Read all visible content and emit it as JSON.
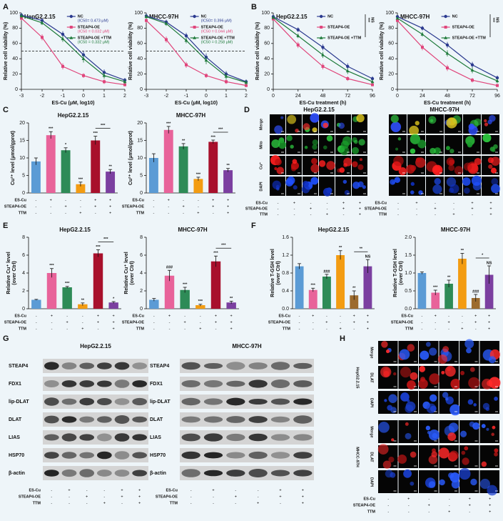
{
  "chart_data": [
    {
      "type": "line",
      "panel": "A",
      "title": "HepG2.2.15",
      "x_label": "ES-Cu (μM, log10)",
      "y_label": [
        "Relative cell viability (%)"
      ],
      "x": [
        -3,
        -2,
        -1,
        0,
        1,
        2
      ],
      "xlim": [
        -3,
        2
      ],
      "xticks": [
        -3,
        -2,
        -1,
        0,
        1,
        2
      ],
      "ylim": [
        0,
        100
      ],
      "yticks": [
        0,
        20,
        40,
        60,
        80,
        100
      ],
      "reference_line": 50,
      "series": [
        {
          "name": "NC",
          "note": "(IC50= 0.473 μM)",
          "color": "#2b3a8f",
          "values": [
            97,
            90,
            72,
            45,
            22,
            12
          ],
          "errors": [
            3,
            3,
            4,
            5,
            4,
            3
          ]
        },
        {
          "name": "STEAP4-OE",
          "note": "(IC50 = 0.032 μM)",
          "color": "#e0457b",
          "values": [
            93,
            68,
            30,
            18,
            10,
            6
          ],
          "errors": [
            3,
            4,
            4,
            3,
            3,
            2
          ]
        },
        {
          "name": "STEAP4-OE +TTM",
          "note": "(IC50 = 0.332 μM)",
          "color": "#1e7a3a",
          "values": [
            96,
            87,
            66,
            40,
            18,
            10
          ],
          "errors": [
            3,
            3,
            4,
            5,
            4,
            3
          ]
        }
      ]
    },
    {
      "type": "line",
      "title": "MHCC-97H",
      "x_label": "ES-Cu (μM, log10)",
      "y_label": [
        "Relative cell viability (%)"
      ],
      "x": [
        -3,
        -2,
        -1,
        0,
        1,
        2
      ],
      "xlim": [
        -3,
        2
      ],
      "xticks": [
        -3,
        -2,
        -1,
        0,
        1,
        2
      ],
      "ylim": [
        0,
        100
      ],
      "yticks": [
        0,
        20,
        40,
        60,
        80,
        100
      ],
      "reference_line": 50,
      "series": [
        {
          "name": "NC",
          "note": "(IC50= 0.396 μM)",
          "color": "#2b3a8f",
          "values": [
            96,
            88,
            70,
            42,
            20,
            10
          ],
          "errors": [
            3,
            3,
            4,
            5,
            4,
            3
          ]
        },
        {
          "name": "STEAP4-OE",
          "note": "(IC50 = 0.044 μM)",
          "color": "#e0457b",
          "values": [
            90,
            65,
            32,
            18,
            10,
            5
          ],
          "errors": [
            3,
            4,
            4,
            3,
            3,
            2
          ]
        },
        {
          "name": "STEAP4-OE +TTM",
          "note": "(IC50 = 0.258 μM)",
          "color": "#1e7a3a",
          "values": [
            95,
            86,
            64,
            38,
            17,
            9
          ],
          "errors": [
            3,
            3,
            4,
            5,
            4,
            3
          ]
        }
      ]
    },
    {
      "type": "line",
      "panel": "B",
      "title": "HepG2.2.15",
      "x_label": "ES-Cu treatment (h)",
      "y_label": [
        "Relative cell viability (%)"
      ],
      "x": [
        0,
        24,
        48,
        72,
        96
      ],
      "xlim": [
        0,
        96
      ],
      "xticks": [
        0,
        24,
        48,
        72,
        96
      ],
      "ylim": [
        0,
        100
      ],
      "yticks": [
        0,
        20,
        40,
        60,
        80,
        100
      ],
      "significance": [
        "***",
        "NS"
      ],
      "series": [
        {
          "name": "NC",
          "color": "#2b3a8f",
          "values": [
            95,
            78,
            55,
            30,
            14
          ],
          "errors": [
            2,
            3,
            4,
            4,
            3
          ]
        },
        {
          "name": "STEAP4-OE",
          "color": "#e0457b",
          "values": [
            92,
            58,
            30,
            14,
            6
          ],
          "errors": [
            2,
            4,
            4,
            3,
            2
          ]
        },
        {
          "name": "STEAP4-OE +TTM",
          "color": "#1e7a3a",
          "values": [
            94,
            70,
            45,
            24,
            10
          ],
          "errors": [
            2,
            3,
            4,
            4,
            3
          ]
        }
      ]
    },
    {
      "type": "line",
      "title": "MHCC-97H",
      "x_label": "ES-Cu treatment (h)",
      "y_label": [
        "Relative cell viability (%)"
      ],
      "x": [
        0,
        24,
        48,
        72,
        96
      ],
      "xlim": [
        0,
        96
      ],
      "xticks": [
        0,
        24,
        48,
        72,
        96
      ],
      "ylim": [
        0,
        100
      ],
      "yticks": [
        0,
        20,
        40,
        60,
        80,
        100
      ],
      "significance": [
        "***",
        "NS"
      ],
      "series": [
        {
          "name": "NC",
          "color": "#2b3a8f",
          "values": [
            95,
            80,
            58,
            32,
            15
          ],
          "errors": [
            2,
            3,
            4,
            4,
            3
          ]
        },
        {
          "name": "STEAP4-OE",
          "color": "#e0457b",
          "values": [
            90,
            55,
            28,
            12,
            5
          ],
          "errors": [
            2,
            4,
            4,
            3,
            2
          ]
        },
        {
          "name": "STEAP4-OE +TTM",
          "color": "#1e7a3a",
          "values": [
            93,
            72,
            47,
            25,
            11
          ],
          "errors": [
            2,
            3,
            4,
            4,
            3
          ]
        }
      ]
    },
    {
      "type": "bar",
      "panel": "C",
      "title": "HepG2.2.15",
      "y_label": [
        "Cu²⁺ level (μmol/gprot)"
      ],
      "values": [
        9,
        16.5,
        12.2,
        2.5,
        15,
        6.1
      ],
      "errors": [
        1,
        1,
        0.7,
        0.6,
        1.2,
        0.6
      ],
      "colors": [
        "#5b9bd5",
        "#e8639a",
        "#2e8b57",
        "#f39c12",
        "#a8102c",
        "#7b3fa0"
      ],
      "annotations": [
        null,
        "***",
        "*",
        "***",
        "***",
        "**"
      ],
      "bracket_label": "***",
      "ylim": [
        0,
        20
      ],
      "yticks": [
        0,
        5,
        10,
        15,
        20
      ],
      "conditions": [
        {
          "name": "ES-Cu",
          "marks": [
            "-",
            "+",
            "-",
            "-",
            "+",
            "+"
          ]
        },
        {
          "name": "STEAP4-OE",
          "marks": [
            "-",
            "-",
            "+",
            "-",
            "+",
            "+"
          ]
        },
        {
          "name": "TTM",
          "marks": [
            "-",
            "-",
            "-",
            "+",
            "-",
            "+"
          ]
        }
      ]
    },
    {
      "type": "bar",
      "title": "MHCC-97H",
      "y_label": [
        "Cu²⁺ level (μmol/gprot)"
      ],
      "values": [
        10,
        18,
        13.3,
        4,
        14.6,
        6.5
      ],
      "errors": [
        1.2,
        1,
        0.8,
        0.5,
        0.5,
        0.5
      ],
      "colors": [
        "#5b9bd5",
        "#e8639a",
        "#2e8b57",
        "#f39c12",
        "#a8102c",
        "#7b3fa0"
      ],
      "annotations": [
        null,
        "***",
        "**",
        "***",
        "***",
        "**"
      ],
      "bracket_label": "***",
      "ylim": [
        0,
        20
      ],
      "yticks": [
        0,
        5,
        10,
        15,
        20
      ],
      "conditions": [
        {
          "name": "ES-Cu",
          "marks": [
            "-",
            "+",
            "-",
            "-",
            "+",
            "+"
          ]
        },
        {
          "name": "STEAP4-OE",
          "marks": [
            "-",
            "-",
            "+",
            "-",
            "+",
            "+"
          ]
        },
        {
          "name": "TTM",
          "marks": [
            "-",
            "-",
            "-",
            "+",
            "-",
            "+"
          ]
        }
      ]
    },
    {
      "type": "bar",
      "panel": "E",
      "title": "HepG2.2.15",
      "y_label": [
        "Relative Cu⁺ level",
        "(over Ctrl)"
      ],
      "values": [
        1,
        4,
        2.4,
        0.5,
        6.2,
        0.7
      ],
      "errors": [
        0.05,
        0.5,
        0.1,
        0.15,
        0.4,
        0.1
      ],
      "colors": [
        "#5b9bd5",
        "#e8639a",
        "#2e8b57",
        "#f39c12",
        "#a8102c",
        "#7b3fa0"
      ],
      "annotations": [
        null,
        "***",
        "***",
        "**",
        "***",
        "*"
      ],
      "bracket_label": "***",
      "ylim": [
        0,
        8
      ],
      "yticks": [
        0,
        2,
        4,
        6,
        8
      ],
      "conditions": [
        {
          "name": "ES-Cu",
          "marks": [
            "-",
            "+",
            "-",
            "-",
            "+",
            "+"
          ]
        },
        {
          "name": "STEAP4-OE",
          "marks": [
            "-",
            "-",
            "+",
            "-",
            "+",
            "+"
          ]
        },
        {
          "name": "TTM",
          "marks": [
            "-",
            "-",
            "-",
            "+",
            "-",
            "+"
          ]
        }
      ]
    },
    {
      "type": "bar",
      "title": "MHCC-97H",
      "y_label": [
        "Relative Cu⁺ level",
        "(over Ctrl)"
      ],
      "values": [
        1,
        3.7,
        2.1,
        0.4,
        5.3,
        0.7
      ],
      "errors": [
        0.15,
        0.6,
        0.3,
        0.1,
        0.6,
        0.15
      ],
      "colors": [
        "#5b9bd5",
        "#e8639a",
        "#2e8b57",
        "#f39c12",
        "#a8102c",
        "#7b3fa0"
      ],
      "annotations": [
        null,
        "###",
        "***",
        "***",
        "***",
        "**"
      ],
      "bracket_label": "***",
      "ylim": [
        0,
        8
      ],
      "yticks": [
        0,
        2,
        4,
        6,
        8
      ],
      "conditions": [
        {
          "name": "ES-Cu",
          "marks": [
            "-",
            "+",
            "-",
            "-",
            "+",
            "+"
          ]
        },
        {
          "name": "STEAP4-OE",
          "marks": [
            "-",
            "-",
            "+",
            "-",
            "+",
            "+"
          ]
        },
        {
          "name": "TTM",
          "marks": [
            "-",
            "-",
            "-",
            "+",
            "-",
            "+"
          ]
        }
      ]
    },
    {
      "type": "bar",
      "panel": "F",
      "title": "HepG2.2.15",
      "y_label": [
        "Relative T-GSH level",
        "(over Ctrl)"
      ],
      "values": [
        0.95,
        0.42,
        0.72,
        1.2,
        0.3,
        0.95
      ],
      "errors": [
        0.06,
        0.04,
        0.05,
        0.1,
        0.1,
        0.15
      ],
      "colors": [
        "#5b9bd5",
        "#e8639a",
        "#2e8b57",
        "#f39c12",
        "#9c6b2e",
        "#7b3fa0"
      ],
      "annotations": [
        null,
        "***",
        "###",
        "**",
        "**",
        "NS"
      ],
      "bracket_label": "**",
      "ylim": [
        0,
        1.6
      ],
      "yticks": [
        {
          "value": 0,
          "label": "0.0"
        },
        {
          "value": 0.4,
          "label": "0.4"
        },
        {
          "value": 0.8,
          "label": "0.8"
        },
        {
          "value": 1.2,
          "label": "1.2"
        },
        {
          "value": 1.6,
          "label": "1.6"
        }
      ],
      "conditions": [
        {
          "name": "ES-Cu",
          "marks": [
            "-",
            "+",
            "-",
            "-",
            "+",
            "+"
          ]
        },
        {
          "name": "STEAP4-OE",
          "marks": [
            "-",
            "-",
            "+",
            "-",
            "+",
            "+"
          ]
        },
        {
          "name": "TTM",
          "marks": [
            "-",
            "-",
            "-",
            "+",
            "-",
            "+"
          ]
        }
      ]
    },
    {
      "type": "bar",
      "title": "MHCC-97H",
      "y_label": [
        "Relative T-GSH level",
        "(over Ctrl)"
      ],
      "values": [
        1.0,
        0.45,
        0.7,
        1.4,
        0.3,
        0.95
      ],
      "errors": [
        0.03,
        0.07,
        0.1,
        0.15,
        0.1,
        0.25
      ],
      "colors": [
        "#5b9bd5",
        "#e8639a",
        "#2e8b57",
        "#f39c12",
        "#9c6b2e",
        "#7b3fa0"
      ],
      "annotations": [
        null,
        "***",
        "**",
        "**",
        "###",
        "NS"
      ],
      "bracket_label": "*",
      "ylim": [
        0,
        2
      ],
      "yticks": [
        {
          "value": 0,
          "label": "0.0"
        },
        {
          "value": 0.5,
          "label": "0.5"
        },
        {
          "value": 1,
          "label": "1.0"
        },
        {
          "value": 1.5,
          "label": "1.5"
        },
        {
          "value": 2,
          "label": "2.0"
        }
      ],
      "conditions": [
        {
          "name": "ES-Cu",
          "marks": [
            "-",
            "+",
            "-",
            "-",
            "+",
            "+"
          ]
        },
        {
          "name": "STEAP4-OE",
          "marks": [
            "-",
            "-",
            "+",
            "-",
            "+",
            "+"
          ]
        },
        {
          "name": "TTM",
          "marks": [
            "-",
            "-",
            "-",
            "+",
            "-",
            "+"
          ]
        }
      ]
    }
  ],
  "panel_d": {
    "panel": "D",
    "rows": [
      "Merge",
      "Mito",
      "Cu⁺",
      "DAPI"
    ],
    "groups": [
      {
        "title": "HepG2.2.15",
        "conditions": [
          {
            "name": "ES-Cu",
            "marks": [
              "-",
              "+",
              "-",
              "-",
              "+",
              "+"
            ]
          },
          {
            "name": "STEAP4-OE",
            "marks": [
              "-",
              "-",
              "+",
              "-",
              "+",
              "+"
            ]
          },
          {
            "name": "TTM",
            "marks": [
              "-",
              "-",
              "-",
              "+",
              "-",
              "+"
            ]
          }
        ]
      },
      {
        "title": "MHCC-97H",
        "conditions": [
          {
            "name": "ES-Cu",
            "marks": [
              "-",
              "+",
              "-",
              "-",
              "+",
              "+"
            ]
          },
          {
            "name": "STEAP4-OE",
            "marks": [
              "-",
              "-",
              "+",
              "-",
              "+",
              "+"
            ]
          },
          {
            "name": "TTM",
            "marks": [
              "-",
              "-",
              "-",
              "+",
              "-",
              "+"
            ]
          }
        ]
      }
    ]
  },
  "panel_g": {
    "panel": "G",
    "blots": [
      {
        "title": "HepG2.2.15",
        "proteins": [
          "STEAP4",
          "FDX1",
          "lip-DLAT",
          "DLAT",
          "LIAS",
          "HSP70",
          "β-actin"
        ],
        "conditions": [
          {
            "name": "ES-Cu",
            "marks": [
              "-",
              "+",
              "-",
              "-",
              "+",
              "+"
            ]
          },
          {
            "name": "STEAP4-OE",
            "marks": [
              "-",
              "-",
              "+",
              "-",
              "+",
              "+"
            ]
          },
          {
            "name": "TTM",
            "marks": [
              "-",
              "-",
              "-",
              "+",
              "-",
              "+"
            ]
          }
        ]
      },
      {
        "title": "MHCC-97H",
        "proteins": [
          "STEAP4",
          "FDX1",
          "lip-DLAT",
          "DLAT",
          "LIAS",
          "HSP70",
          "β-actin"
        ],
        "conditions": [
          {
            "name": "ES-Cu",
            "marks": [
              "-",
              "+",
              "-",
              "-",
              "+",
              "+"
            ]
          },
          {
            "name": "STEAP4-OE",
            "marks": [
              "-",
              "-",
              "+",
              "-",
              "+",
              "+"
            ]
          },
          {
            "name": "TTM",
            "marks": [
              "-",
              "-",
              "-",
              "+",
              "-",
              "+"
            ]
          }
        ]
      }
    ]
  },
  "panel_h": {
    "panel": "H",
    "groups": [
      {
        "cell_line": "HepG2.2.15",
        "rows": [
          "Merge",
          "DLAT",
          "DAPI"
        ]
      },
      {
        "cell_line": "MHCC-97H",
        "rows": [
          "Merge",
          "DLAT",
          "DAPI"
        ]
      }
    ],
    "conditions": [
      {
        "name": "ES-Cu",
        "marks": [
          "-",
          "+",
          "-",
          "-",
          "+",
          "+"
        ]
      },
      {
        "name": "STEAP4-OE",
        "marks": [
          "-",
          "-",
          "+",
          "-",
          "+",
          "+"
        ]
      },
      {
        "name": "TTM",
        "marks": [
          "-",
          "-",
          "-",
          "+",
          "-",
          "+"
        ]
      }
    ]
  }
}
